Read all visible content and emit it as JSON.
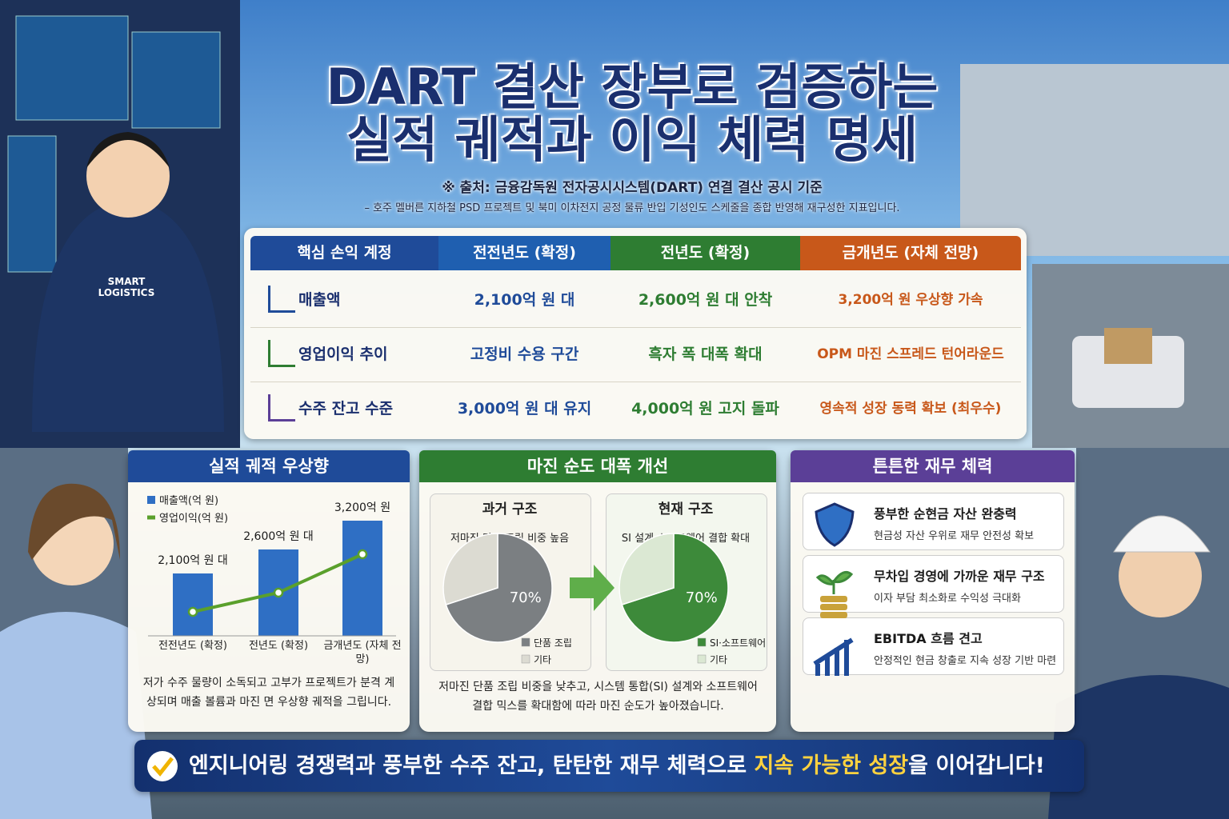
{
  "header": {
    "title_line1": "DART 결산 장부로 검증하는",
    "title_line2": "실적 궤적과 이익 체력 명세",
    "source": "※ 출처: 금융감독원 전자공시시스템(DART) 연결 결산 공시 기준",
    "note": "– 호주 멜버른 지하철 PSD 프로젝트 및 북미 이차전지 공정 물류 반입 기성인도 스케줄을 종합 반영해 재구성한 지표입니다."
  },
  "illustration": {
    "jacket_text": "SMART LOGISTICS"
  },
  "table": {
    "headers": [
      "핵심 손익 계정",
      "전전년도 (확정)",
      "전년도 (확정)",
      "금개년도 (자체 전망)"
    ],
    "rows": [
      [
        "매출액",
        "2,100억 원 대",
        "2,600억 원 대 안착",
        "3,200억 원 우상향 가속"
      ],
      [
        "영업이익 추이",
        "고정비 수용 구간",
        "흑자 폭 대폭 확대",
        "OPM 마진 스프레드 턴어라운드"
      ],
      [
        "수주 잔고 수준",
        "3,000억 원 대 유지",
        "4,000억 원 고지 돌파",
        "영속적 성장 동력 확보 (최우수)"
      ]
    ]
  },
  "panels": [
    {
      "title": "실적 궤적 우상향",
      "caption": "저가 수주 물량이 소독되고 고부가 프로젝트가 분격 계상되며 매출 볼륨과 마진 면 우상향 궤적을 그립니다."
    },
    {
      "title": "마진 순도 대폭 개선",
      "caption": "저마진 단품 조립 비중을 낮추고, 시스템 통합(SI) 설계와 소프트웨어 결합 믹스를 확대함에 따라 마진 순도가 높아졌습니다."
    },
    {
      "title": "튼튼한 재무 체력",
      "items": [
        {
          "title": "풍부한 순현금 자산 완충력",
          "text": "현금성 자산 우위로 재무 안전성 확보"
        },
        {
          "title": "무차입 경영에 가까운 재무 구조",
          "text": "이자 부담 최소화로 수익성 극대화"
        },
        {
          "title": "EBITDA 흐름 견고",
          "text": "안정적인 현금 창출로 지속 성장 기반 마련"
        }
      ]
    }
  ],
  "chart_data": [
    {
      "type": "bar",
      "categories": [
        "전전년도 (확정)",
        "전년도 (확정)",
        "금개년도 (자체 전망)"
      ],
      "ylim": [
        800,
        3500
      ],
      "series": [
        {
          "name": "매출액(억 원)",
          "color": "#2f6fc4",
          "values": [
            2100,
            2600,
            3200
          ],
          "value_labels": [
            "2,100억 원 대",
            "2,600억 원 대",
            "3,200억 원"
          ]
        },
        {
          "name": "영업이익(억 원)",
          "type": "line",
          "color": "#5aa02c",
          "values": [
            1300,
            1700,
            2500
          ]
        }
      ]
    },
    {
      "type": "pie",
      "title": "과거 구조",
      "subtitle": "저마진 단품 조립 비중 높음",
      "categories": [
        "단품 조립",
        "기타"
      ],
      "values": [
        70,
        30
      ],
      "value_labels": [
        "70%",
        null
      ],
      "colors": [
        "#7b7f82",
        "#dcdbd2"
      ]
    },
    {
      "type": "pie",
      "title": "현재 구조",
      "subtitle": "SI 설계·소프트웨어 결합 확대",
      "categories": [
        "SI·소프트웨어",
        "기타"
      ],
      "values": [
        70,
        30
      ],
      "value_labels": [
        "70%",
        null
      ],
      "colors": [
        "#3d8a3a",
        "#dbe8d3"
      ]
    }
  ],
  "footer": {
    "lead": "엔지니어링 경쟁력과 풍부한 수주 잔고, 탄탄한 재무 체력으로 ",
    "highlight": "지속 가능한 성장",
    "tail": "을 이어갑니다!"
  }
}
